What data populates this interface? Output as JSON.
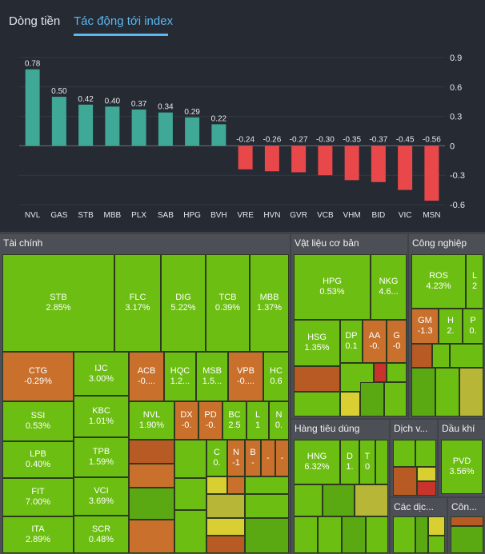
{
  "tabs": [
    {
      "label": "Dòng tiền",
      "active": false
    },
    {
      "label": "Tác động tới index",
      "active": true
    }
  ],
  "chart_data": {
    "type": "bar",
    "categories": [
      "NVL",
      "GAS",
      "STB",
      "MBB",
      "PLX",
      "SAB",
      "HPG",
      "BVH",
      "VRE",
      "HVN",
      "GVR",
      "VCB",
      "VHM",
      "BID",
      "VIC",
      "MSN"
    ],
    "values": [
      0.78,
      0.5,
      0.42,
      0.4,
      0.37,
      0.34,
      0.29,
      0.22,
      -0.24,
      -0.26,
      -0.27,
      -0.3,
      -0.35,
      -0.37,
      -0.45,
      -0.56
    ],
    "value_labels": [
      "0.78",
      "0.50",
      "0.42",
      "0.40",
      "0.37",
      "0.34",
      "0.29",
      "0.22",
      "-0.24",
      "-0.26",
      "-0.27",
      "-0.30",
      "-0.35",
      "-0.37",
      "-0.45",
      "-0.56"
    ],
    "ylim": [
      -0.6,
      0.9
    ],
    "yticks": [
      "0.9",
      "0.6",
      "0.3",
      "0",
      "-0.3",
      "-0.6"
    ],
    "ytick_values": [
      0.9,
      0.6,
      0.3,
      0,
      -0.3,
      -0.6
    ],
    "grid": true,
    "colors": {
      "positive": "#3fa896",
      "negative": "#e8484a"
    }
  },
  "treemap": {
    "sectors": {
      "taichinh": "Tài chính",
      "vatlieu": "Vật liệu cơ bản",
      "congnghiep": "Công nghiệp",
      "hangtieudung": "Hàng tiêu dùng",
      "dichvu": "Dịch v...",
      "daukhi": "Dầu khí",
      "cacdich": "Các dịc...",
      "cong": "Côn..."
    },
    "cells": {
      "STB": {
        "s": "STB",
        "v": "2.85%"
      },
      "FLC": {
        "s": "FLC",
        "v": "3.17%"
      },
      "DIG": {
        "s": "DIG",
        "v": "5.22%"
      },
      "TCB": {
        "s": "TCB",
        "v": "0.39%"
      },
      "MBB": {
        "s": "MBB",
        "v": "1.37%"
      },
      "CTG": {
        "s": "CTG",
        "v": "-0.29%"
      },
      "IJC": {
        "s": "IJC",
        "v": "3.00%"
      },
      "ACB": {
        "s": "ACB",
        "v": "-0...."
      },
      "HQC": {
        "s": "HQC",
        "v": "1.2..."
      },
      "MSB": {
        "s": "MSB",
        "v": "1.5..."
      },
      "VPB": {
        "s": "VPB",
        "v": "-0...."
      },
      "HC": {
        "s": "HC",
        "v": "0.6"
      },
      "SSI": {
        "s": "SSI",
        "v": "0.53%"
      },
      "KBC": {
        "s": "KBC",
        "v": "1.01%"
      },
      "NVL": {
        "s": "NVL",
        "v": "1.90%"
      },
      "DX": {
        "s": "DX",
        "v": "-0."
      },
      "PD": {
        "s": "PD",
        "v": "-0."
      },
      "BC": {
        "s": "BC",
        "v": "2.5"
      },
      "L1": {
        "s": "L",
        "v": "1"
      },
      "N1": {
        "s": "N",
        "v": "0."
      },
      "LPB": {
        "s": "LPB",
        "v": "0.40%"
      },
      "TPB": {
        "s": "TPB",
        "v": "1.59%"
      },
      "C1": {
        "s": "C",
        "v": "0."
      },
      "N2": {
        "s": "N",
        "v": "-1"
      },
      "B1": {
        "s": "B",
        "v": "-"
      },
      "D1": {
        "s": "-",
        "v": ""
      },
      "D2": {
        "s": "-",
        "v": ""
      },
      "FIT": {
        "s": "FIT",
        "v": "7.00%"
      },
      "VCI": {
        "s": "VCI",
        "v": "3.69%"
      },
      "ITA": {
        "s": "ITA",
        "v": "2.89%"
      },
      "SCR": {
        "s": "SCR",
        "v": "0.48%"
      },
      "HPG": {
        "s": "HPG",
        "v": "0.53%"
      },
      "NKG": {
        "s": "NKG",
        "v": "4.6..."
      },
      "HSG": {
        "s": "HSG",
        "v": "1.35%"
      },
      "DP": {
        "s": "DP",
        "v": "0.1"
      },
      "AA": {
        "s": "AA",
        "v": "-0."
      },
      "G": {
        "s": "G",
        "v": "-0"
      },
      "ROS": {
        "s": "ROS",
        "v": "4.23%"
      },
      "L2": {
        "s": "L",
        "v": "2"
      },
      "GM": {
        "s": "GM",
        "v": "-1.3"
      },
      "H": {
        "s": "H",
        "v": "2."
      },
      "P": {
        "s": "P",
        "v": "0."
      },
      "HNG": {
        "s": "HNG",
        "v": "6.32%"
      },
      "D3": {
        "s": "D",
        "v": "1."
      },
      "T": {
        "s": "T",
        "v": "0"
      },
      "PVD": {
        "s": "PVD",
        "v": "3.56%"
      }
    }
  }
}
